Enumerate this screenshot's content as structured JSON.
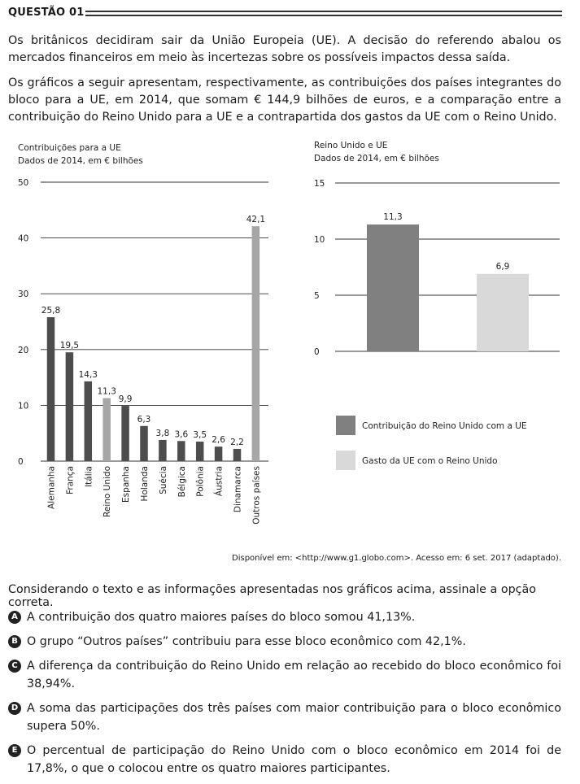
{
  "header": {
    "label": "QUESTÃO 01"
  },
  "paragraphs": {
    "p1": "Os britânicos decidiram sair da União Europeia (UE). A decisão do referendo abalou os mercados financeiros em meio às incertezas sobre os possíveis impactos dessa saída.",
    "p2": "Os gráficos a seguir apresentam, respectivamente, as contribuições dos países integrantes do bloco para a UE, em 2014, que somam € 144,9 bilhões de euros, e a comparação entre a contribuição do Reino Unido para a UE e a contrapartida dos gastos da UE com o Reino Unido."
  },
  "chart_data": [
    {
      "type": "bar",
      "title": "Contribuições para a UE",
      "subtitle": "Dados de 2014, em € bilhões",
      "categories": [
        "Alemanha",
        "França",
        "Itália",
        "Reino Unido",
        "Espanha",
        "Holanda",
        "Suécia",
        "Bélgica",
        "Polônia",
        "Áustria",
        "Dinamarca",
        "Outros países"
      ],
      "values": [
        25.8,
        19.5,
        14.3,
        11.3,
        9.9,
        6.3,
        3.8,
        3.6,
        3.5,
        2.6,
        2.2,
        42.1
      ],
      "value_labels": [
        "25,8",
        "19,5",
        "14,3",
        "11,3",
        "9,9",
        "6,3",
        "3,8",
        "3,6",
        "3,5",
        "2,6",
        "2,2",
        "42,1"
      ],
      "bar_colors": [
        "#4d4d4d",
        "#4d4d4d",
        "#4d4d4d",
        "#a6a6a6",
        "#4d4d4d",
        "#4d4d4d",
        "#4d4d4d",
        "#4d4d4d",
        "#4d4d4d",
        "#4d4d4d",
        "#4d4d4d",
        "#a6a6a6"
      ],
      "yticks": [
        0,
        10,
        20,
        30,
        40,
        50
      ],
      "ylim": [
        0,
        50
      ],
      "grid": true,
      "xlabel": "",
      "ylabel": ""
    },
    {
      "type": "bar",
      "title": "Reino Unido e UE",
      "subtitle": "Dados de 2014, em € bilhões",
      "series": [
        {
          "name": "Contribuição do Reino Unido com a UE",
          "value": 11.3,
          "label": "11,3",
          "color": "#808080"
        },
        {
          "name": "Gasto da UE com o Reino Unido",
          "value": 6.9,
          "label": "6,9",
          "color": "#d9d9d9"
        }
      ],
      "yticks": [
        0,
        5,
        10,
        15
      ],
      "ylim": [
        0,
        15
      ],
      "grid": true,
      "legend": "below",
      "xlabel": "",
      "ylabel": ""
    }
  ],
  "source": "Disponível em: <http://www.g1.globo.com>. Acesso em: 6 set. 2017 (adaptado).",
  "question": "Considerando o texto e as informações apresentadas nos gráficos acima, assinale a opção correta.",
  "options": [
    {
      "letter": "A",
      "text": "A contribuição dos quatro maiores países do bloco somou 41,13%."
    },
    {
      "letter": "B",
      "text": "O grupo “Outros países” contribuiu para esse bloco econômico com 42,1%."
    },
    {
      "letter": "C",
      "text": "A diferença da contribuição do Reino Unido em relação ao recebido do bloco econômico foi 38,94%."
    },
    {
      "letter": "D",
      "text": "A soma das participações dos três países com maior contribuição para o bloco econômico supera 50%."
    },
    {
      "letter": "E",
      "text": "O percentual de participação do Reino Unido com o bloco econômico em 2014 foi de 17,8%, o que o colocou entre os quatro maiores participantes."
    }
  ]
}
